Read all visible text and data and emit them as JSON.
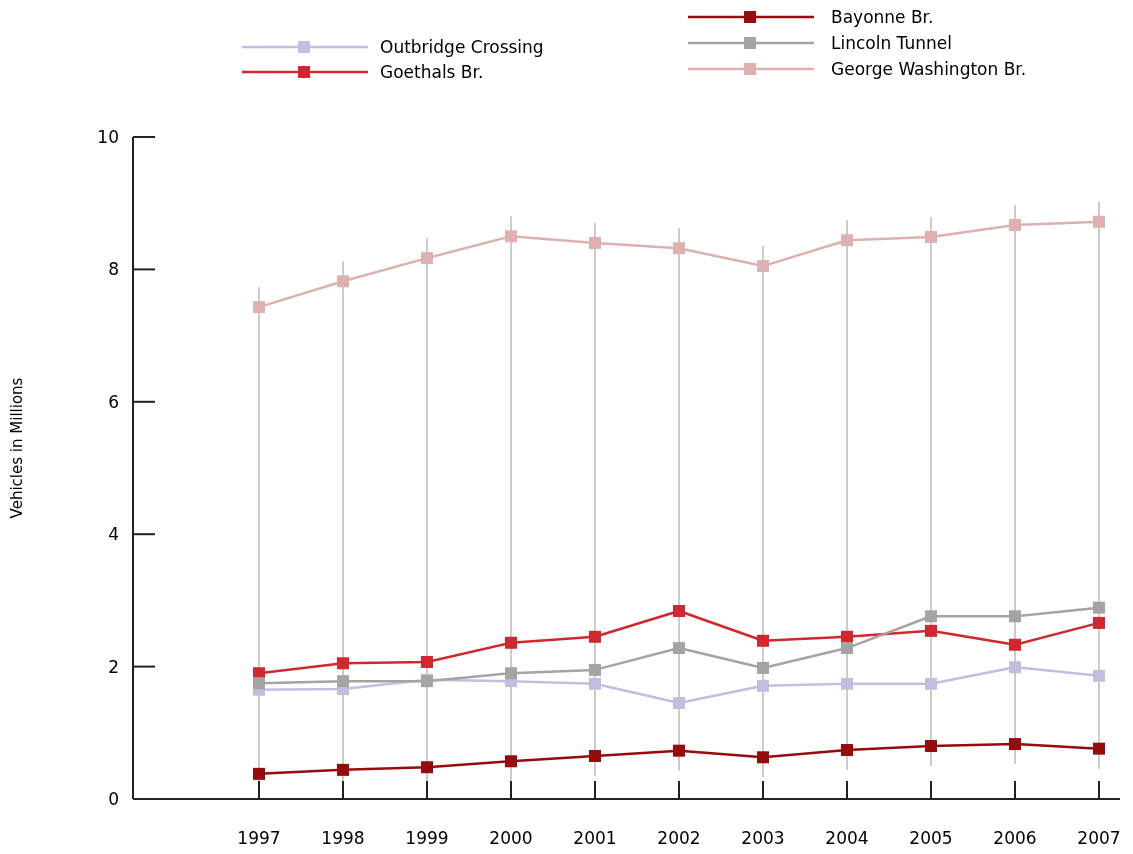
{
  "chart_data": {
    "type": "line",
    "ylabel": "Vehicles in Millions",
    "x": [
      1997,
      1998,
      1999,
      2000,
      2001,
      2002,
      2003,
      2004,
      2005,
      2006,
      2007
    ],
    "xlim": [
      1995.5,
      2007.25
    ],
    "xticks": [
      1997,
      1998,
      1999,
      2000,
      2001,
      2002,
      2003,
      2004,
      2005,
      2006,
      2007
    ],
    "ylim": [
      0,
      10
    ],
    "yticks": [
      0,
      2,
      4,
      6,
      8,
      10
    ],
    "grid": "x",
    "legend": "top",
    "marker": "square",
    "line_style": "solid",
    "series": [
      {
        "name": "Outbridge Crossing",
        "color": "#c5bde0",
        "values": [
          1.65,
          1.66,
          1.8,
          1.78,
          1.74,
          1.45,
          1.71,
          1.74,
          1.74,
          1.99,
          1.86
        ]
      },
      {
        "name": "Goethals Br.",
        "color": "#d0282e",
        "values": [
          1.9,
          2.05,
          2.07,
          2.36,
          2.45,
          2.84,
          2.39,
          2.45,
          2.54,
          2.33,
          2.66
        ]
      },
      {
        "name": "Bayonne Br.",
        "color": "#960b0b",
        "values": [
          0.38,
          0.44,
          0.48,
          0.57,
          0.65,
          0.73,
          0.63,
          0.74,
          0.8,
          0.83,
          0.76
        ]
      },
      {
        "name": "Lincoln Tunnel",
        "color": "#a8a3a3",
        "values": [
          1.75,
          1.78,
          1.78,
          1.9,
          1.95,
          2.28,
          1.98,
          2.28,
          2.76,
          2.76,
          2.89
        ]
      },
      {
        "name": "George Washington Br.",
        "color": "#deb0b0",
        "values": [
          7.43,
          7.82,
          8.17,
          8.5,
          8.4,
          8.32,
          8.05,
          8.44,
          8.49,
          8.67,
          8.72
        ]
      }
    ]
  }
}
